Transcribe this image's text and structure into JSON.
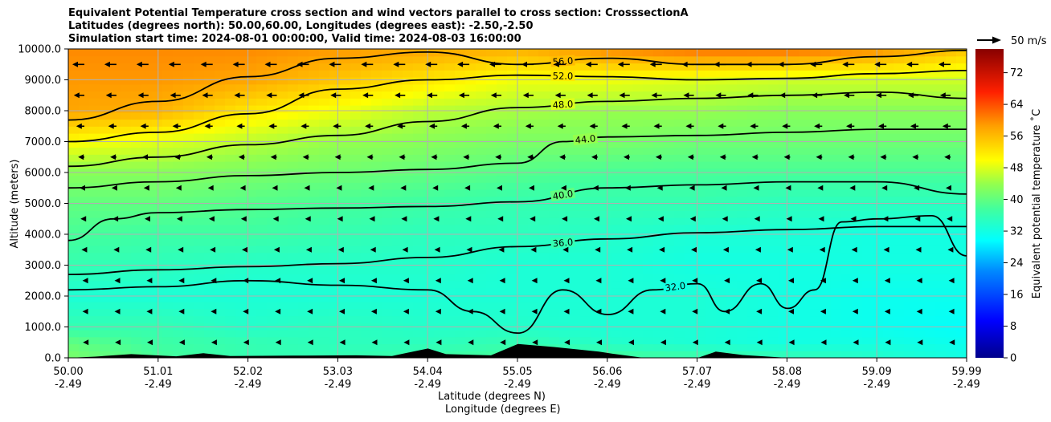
{
  "title_lines": [
    "Equivalent Potential Temperature cross section and wind vectors parallel to cross section: CrosssectionA",
    "Latitudes (degrees north): 50.00,60.00, Longitudes (degrees east): -2.50,-2.50",
    "Simulation start time: 2024-08-01 00:00:00, Valid time: 2024-08-03 16:00:00"
  ],
  "chart_data": {
    "type": "heatmap",
    "variable": "Equivalent potential temperature",
    "xlabel_lines": [
      "Latitude (degrees N)",
      "Longitude (degrees E)"
    ],
    "ylabel": "Altitude (meters)",
    "ylim": [
      0,
      10000
    ],
    "xlim": [
      50.0,
      59.99
    ],
    "x_ticks": [
      {
        "lat": "50.00",
        "lon": "-2.49"
      },
      {
        "lat": "51.01",
        "lon": "-2.49"
      },
      {
        "lat": "52.02",
        "lon": "-2.49"
      },
      {
        "lat": "53.03",
        "lon": "-2.49"
      },
      {
        "lat": "54.04",
        "lon": "-2.49"
      },
      {
        "lat": "55.05",
        "lon": "-2.49"
      },
      {
        "lat": "56.06",
        "lon": "-2.49"
      },
      {
        "lat": "57.07",
        "lon": "-2.49"
      },
      {
        "lat": "58.08",
        "lon": "-2.49"
      },
      {
        "lat": "59.09",
        "lon": "-2.49"
      },
      {
        "lat": "59.99",
        "lon": "-2.49"
      }
    ],
    "y_ticks": [
      "0.0",
      "1000.0",
      "2000.0",
      "3000.0",
      "4000.0",
      "5000.0",
      "6000.0",
      "7000.0",
      "8000.0",
      "9000.0",
      "10000.0"
    ],
    "y_tick_values": [
      0,
      1000,
      2000,
      3000,
      4000,
      5000,
      6000,
      7000,
      8000,
      9000,
      10000
    ],
    "grid": true,
    "colorbar": {
      "label": "Equivalent potential temperature ˚C",
      "min": 0,
      "max": 78,
      "ticks": [
        "0",
        "8",
        "16",
        "24",
        "32",
        "40",
        "48",
        "56",
        "64",
        "72"
      ],
      "tick_values": [
        0,
        8,
        16,
        24,
        32,
        40,
        48,
        56,
        64,
        72
      ]
    },
    "quiver_key": {
      "label": "50 m/s",
      "speed": 50
    },
    "field_profile": {
      "x": [
        50.0,
        51.0,
        52.0,
        53.0,
        54.0,
        55.0,
        56.0,
        57.0,
        58.0,
        59.0,
        59.99
      ],
      "altitude": [
        0,
        500,
        1000,
        2000,
        3000,
        4000,
        5000,
        6000,
        7000,
        8000,
        9000,
        10000
      ],
      "values": [
        [
          42,
          38,
          36,
          36,
          37,
          38,
          38,
          37,
          36,
          34,
          32
        ],
        [
          40,
          37,
          36,
          35,
          35,
          36,
          34,
          33,
          32,
          32,
          31
        ],
        [
          36,
          36,
          34,
          35,
          34,
          34,
          33,
          33,
          32,
          31,
          30
        ],
        [
          33,
          33,
          33,
          33,
          33,
          33,
          33,
          33,
          32,
          31,
          31
        ],
        [
          36,
          35,
          34,
          34,
          34,
          33,
          33,
          32,
          32,
          32,
          32
        ],
        [
          38,
          37,
          37,
          36,
          35,
          35,
          34,
          33,
          33,
          32,
          32
        ],
        [
          40,
          40,
          39,
          38,
          37,
          36,
          36,
          36,
          35,
          35,
          35
        ],
        [
          43,
          43,
          42,
          41,
          40,
          39,
          38,
          38,
          38,
          38,
          38
        ],
        [
          50,
          48,
          46,
          44,
          43,
          42,
          42,
          41,
          41,
          41,
          41
        ],
        [
          58,
          57,
          52,
          49,
          46,
          45,
          44,
          44,
          43,
          43,
          43
        ],
        [
          59,
          59,
          58,
          55,
          52,
          49,
          49,
          48,
          47,
          47,
          47
        ],
        [
          60,
          60,
          60,
          59,
          58,
          57,
          60,
          62,
          62,
          60,
          55
        ]
      ]
    },
    "contours": [
      {
        "label": "32.0",
        "level": 32,
        "points": [
          [
            50.0,
            2200
          ],
          [
            51.0,
            2300
          ],
          [
            52.0,
            2500
          ],
          [
            53.0,
            2350
          ],
          [
            54.0,
            2200
          ],
          [
            54.5,
            1500
          ],
          [
            55.0,
            800
          ],
          [
            55.5,
            2200
          ],
          [
            56.0,
            1400
          ],
          [
            56.5,
            2200
          ],
          [
            57.0,
            2400
          ],
          [
            57.3,
            1500
          ],
          [
            57.7,
            2400
          ],
          [
            58.0,
            1600
          ],
          [
            58.3,
            2200
          ],
          [
            58.6,
            4400
          ],
          [
            59.0,
            4500
          ],
          [
            59.6,
            4600
          ],
          [
            59.99,
            3300
          ]
        ]
      },
      {
        "label": "36.0",
        "level": 36,
        "points": [
          [
            50.0,
            2700
          ],
          [
            51.0,
            2850
          ],
          [
            52.0,
            2950
          ],
          [
            53.0,
            3050
          ],
          [
            54.0,
            3250
          ],
          [
            55.0,
            3600
          ],
          [
            56.0,
            3850
          ],
          [
            57.0,
            4050
          ],
          [
            58.0,
            4150
          ],
          [
            59.0,
            4250
          ],
          [
            59.99,
            4250
          ]
        ]
      },
      {
        "label": "40.0",
        "level": 40,
        "points": [
          [
            50.0,
            3800
          ],
          [
            50.5,
            4500
          ],
          [
            51.0,
            4700
          ],
          [
            52.0,
            4800
          ],
          [
            53.0,
            4850
          ],
          [
            54.0,
            4900
          ],
          [
            55.0,
            5050
          ],
          [
            56.0,
            5500
          ],
          [
            57.0,
            5600
          ],
          [
            58.0,
            5700
          ],
          [
            59.0,
            5700
          ],
          [
            59.99,
            5300
          ]
        ]
      },
      {
        "label": "44.0",
        "level": 44,
        "points": [
          [
            50.0,
            5500
          ],
          [
            51.0,
            5700
          ],
          [
            52.0,
            5900
          ],
          [
            53.0,
            6000
          ],
          [
            54.0,
            6100
          ],
          [
            55.0,
            6300
          ],
          [
            55.5,
            7000
          ],
          [
            56.0,
            7150
          ],
          [
            57.0,
            7200
          ],
          [
            58.0,
            7300
          ],
          [
            59.0,
            7400
          ],
          [
            59.99,
            7400
          ]
        ]
      },
      {
        "label": "48.0",
        "level": 48,
        "points": [
          [
            50.0,
            6200
          ],
          [
            51.0,
            6500
          ],
          [
            52.0,
            6900
          ],
          [
            53.0,
            7200
          ],
          [
            54.0,
            7650
          ],
          [
            55.0,
            8100
          ],
          [
            56.0,
            8300
          ],
          [
            57.0,
            8400
          ],
          [
            58.0,
            8500
          ],
          [
            59.0,
            8600
          ],
          [
            59.99,
            8400
          ]
        ]
      },
      {
        "label": "52.0",
        "level": 52,
        "points": [
          [
            50.0,
            7000
          ],
          [
            51.0,
            7300
          ],
          [
            52.0,
            7900
          ],
          [
            53.0,
            8700
          ],
          [
            54.0,
            9000
          ],
          [
            55.0,
            9150
          ],
          [
            56.0,
            9100
          ],
          [
            57.0,
            9000
          ],
          [
            58.0,
            9050
          ],
          [
            59.0,
            9200
          ],
          [
            59.99,
            9300
          ]
        ]
      },
      {
        "label": "56.0",
        "level": 56,
        "points": [
          [
            50.0,
            7700
          ],
          [
            51.0,
            8300
          ],
          [
            52.0,
            9100
          ],
          [
            53.0,
            9700
          ],
          [
            54.0,
            9900
          ],
          [
            55.0,
            9500
          ],
          [
            56.0,
            9700
          ],
          [
            57.0,
            9500
          ],
          [
            58.0,
            9500
          ],
          [
            59.0,
            9750
          ],
          [
            59.99,
            9950
          ]
        ]
      }
    ],
    "terrain": [
      [
        50.0,
        0
      ],
      [
        50.3,
        40
      ],
      [
        50.7,
        120
      ],
      [
        51.2,
        50
      ],
      [
        51.5,
        150
      ],
      [
        51.8,
        60
      ],
      [
        52.5,
        70
      ],
      [
        53.2,
        80
      ],
      [
        53.6,
        60
      ],
      [
        54.0,
        300
      ],
      [
        54.2,
        120
      ],
      [
        54.7,
        80
      ],
      [
        55.0,
        450
      ],
      [
        55.4,
        350
      ],
      [
        55.9,
        200
      ],
      [
        56.06,
        130
      ],
      [
        56.4,
        0
      ],
      [
        57.0,
        0
      ],
      [
        57.2,
        200
      ],
      [
        57.5,
        90
      ],
      [
        58.0,
        0
      ],
      [
        59.99,
        0
      ]
    ],
    "wind_u_profile": {
      "altitude": [
        500,
        1500,
        2500,
        3500,
        4500,
        5500,
        6500,
        7500,
        8500,
        9500
      ],
      "u": [
        -3,
        -4,
        -4,
        -6,
        -8,
        -10,
        -13,
        -17,
        -22,
        -25
      ]
    }
  }
}
